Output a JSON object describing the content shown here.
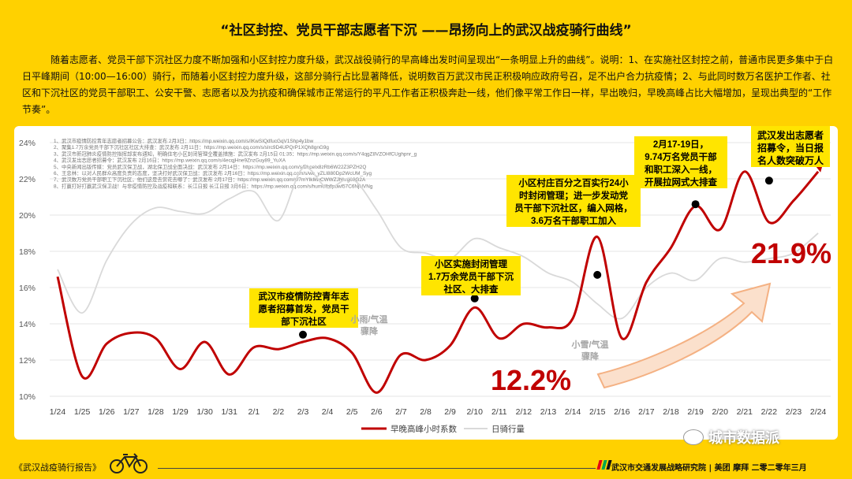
{
  "title": "“社区封控、党员干部志愿者下沉 ——昂扬向上的武汉战疫骑行曲线”",
  "description": "随着志愿者、党员干部下沉社区力度不断加强和小区封控力度升级，武汉战役骑行的早高峰出发时间呈现出“一条明显上升的曲线”。说明：1、在实施社区封控之前，普通市民更多集中于白日平峰期间（10:00—16:00）骑行，而随着小区封控力度升级，这部分骑行占比显著降低，说明数百万武汉市民正积极响应政府号召，足不出户合力抗疫情；2、与此同时数万名医护工作者、社区和下沉社区的党员干部职工、公安干警、志愿者以及为抗疫和确保城市正常运行的平凡工作者正积极奔赴一线，他们像平常工作日一样，早出晚归，早晚高峰占比大幅增加，呈现出典型的“工作节奏”。",
  "sources": [
    "1、武汉市疫情防控青年志愿者招募公告：武汉发布 2月3日：https://mp.weixin.qq.com/s/IKwSIQdfucGqV1Shp4y1bw",
    "2、聚集1.7万余党员干部下沉社区社区大排查：武汉发布 2月11日：https://mp.weixin.qq.com/s/sIrc9D4UPQrP1XQh8gnG9g",
    "3、武汉市新冠肺炎疫情防控指挥部发布通知，明确住宅小区封闭管理全覆盖措施：武汉发布 2月15日 01:35：https://mp.weixin.qq.com/s/Y4qgZ8VZOHfCUghpnr_g",
    "4、武汉发出志愿者招募令：武汉发布 2月16日：https://mp.weixin.qq.com/s/4ecqjHne9ZnzGuy89_YuXA",
    "5、中央新闻出版传媒：党员武汉保卫战，湖北保卫战全面决战：武汉发布 2月14日：https://mp.weixin.qq.com/s/BkceIx8zRb6W22Z3PZH2Q",
    "6、王忠林：以对人民群众高度负责的态度，坚决打好武汉保卫战：武汉发布 2月16日：https://mp.weixin.qq.com/s/wc_yZLI880Dp2WcUM_Syg",
    "7、武汉数万党员干部职工下沉社区，他们这是去赏花去哪了：武汉发布 2月17日：https://mp.weixin.qq.com/s/7mYIkIkwCWWZJNkrg66G2A",
    "8、打赢打好打赢武汉保卫战！与非疫情防控及战疫相联系：长江日报 长江日报 3月6日：https://mp.weixin.qq.com/s/humUlbflpuwl57C6NjNVNg"
  ],
  "annotations": {
    "a1": [
      "武汉市疫情防控青年志",
      "愿者招募首发，党员干",
      "部下沉社区"
    ],
    "a2": [
      "小区实施封闭管理",
      "1.7万余党员干部下沉",
      "社区、大排查"
    ],
    "a3": [
      "小区村庄百分之百实行24小",
      "时封闭管理；进一步发动党",
      "员干部下沉社区，编入网格，",
      "3.6万名干部职工加入"
    ],
    "a4": [
      "2月17-19日，",
      "9.74万名党员干部",
      "和职工深入一线，",
      "开展拉网式大排查"
    ],
    "a5": [
      "武汉发出志愿者",
      "招募令，当日报",
      "名人数突破万人"
    ],
    "weather1": [
      "小雨/气温",
      "骤降"
    ],
    "weather2": [
      "小雪/气温",
      "骤降"
    ],
    "big_low": "12.2%",
    "big_high": "21.9%"
  },
  "footer": {
    "left": "《武汉战疫骑行报告》",
    "right": "武汉市交通发展战略研究院 | 美团 摩拜 二零二零年三月",
    "logo_colors": [
      "#E60012",
      "#00A651",
      "#111111"
    ]
  },
  "watermark": "城市数据派",
  "colors": {
    "peak": "#C00000",
    "daily": "#D9D9D9",
    "arrow": "#F4B183",
    "accent_bg": "#FFD100"
  },
  "chart_data": {
    "type": "line",
    "categories": [
      "1/24",
      "1/25",
      "1/26",
      "1/27",
      "1/28",
      "1/29",
      "1/30",
      "1/31",
      "2/1",
      "2/2",
      "2/3",
      "2/4",
      "2/5",
      "2/6",
      "2/7",
      "2/8",
      "2/9",
      "2/10",
      "2/11",
      "2/12",
      "2/13",
      "2/14",
      "2/15",
      "2/16",
      "2/17",
      "2/18",
      "2/19",
      "2/20",
      "2/21",
      "2/22",
      "2/23",
      "2/24"
    ],
    "ylim": [
      10,
      24
    ],
    "yticks": [
      10,
      12,
      14,
      16,
      18,
      20,
      22,
      24
    ],
    "y_format": "percent",
    "grid": true,
    "legend_position": "bottom",
    "series": [
      {
        "name": "早晚高峰小时系数",
        "color": "#C00000",
        "values": [
          16.6,
          11.1,
          12.9,
          13.5,
          13.2,
          11.5,
          13.0,
          11.2,
          12.7,
          12.6,
          13.0,
          13.2,
          12.4,
          10.2,
          12.3,
          12.0,
          12.8,
          14.9,
          13.2,
          14.0,
          13.8,
          14.3,
          18.8,
          13.2,
          16.3,
          18.2,
          20.5,
          19.2,
          22.4,
          19.6,
          20.8,
          22.4
        ]
      },
      {
        "name": "日骑行量",
        "color": "#D9D9D9",
        "values": [
          17.0,
          14.6,
          17.5,
          19.5,
          20.4,
          20.2,
          20.1,
          20.9,
          21.3,
          19.7,
          22.6,
          21.5,
          22.0,
          20.3,
          18.2,
          17.9,
          17.6,
          18.7,
          18.2,
          17.7,
          16.8,
          16.3,
          15.1,
          14.3,
          16.0,
          16.8,
          16.4,
          17.6,
          17.4,
          17.6,
          17.9,
          19.0
        ]
      }
    ],
    "markers": [
      {
        "x": "2/3",
        "y": 13.4
      },
      {
        "x": "2/10",
        "y": 15.4
      },
      {
        "x": "2/15",
        "y": 16.7
      },
      {
        "x": "2/19",
        "y": 20.6
      },
      {
        "x": "2/22",
        "y": 21.9
      }
    ]
  }
}
